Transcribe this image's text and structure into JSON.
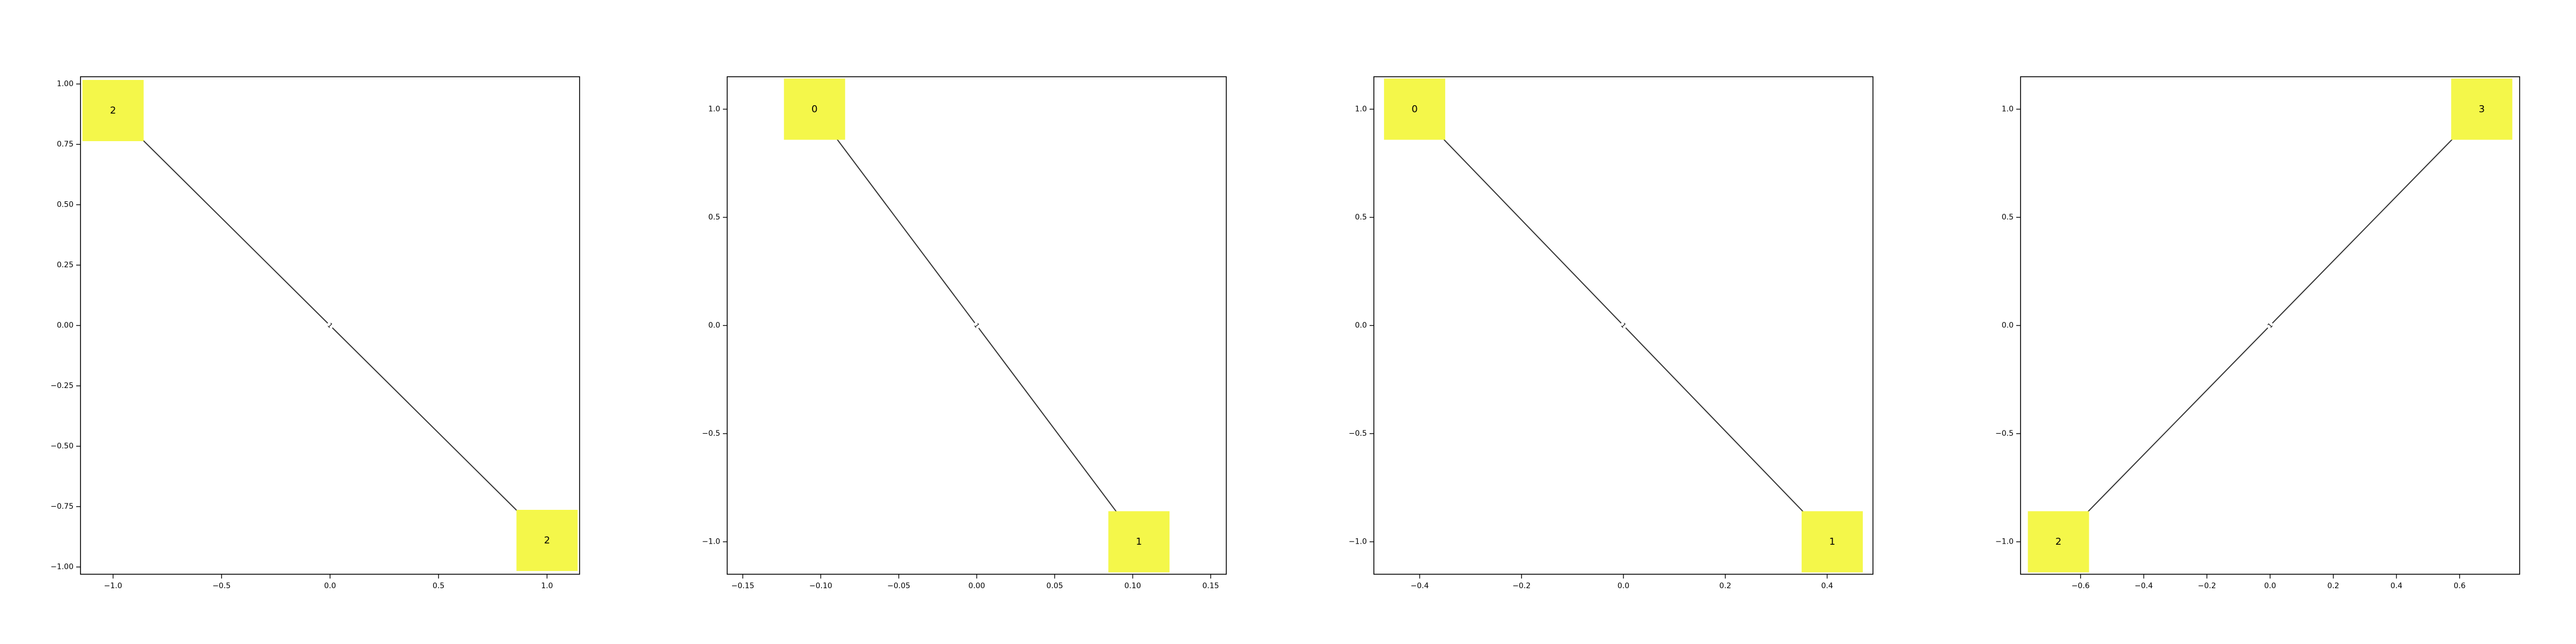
{
  "chart_data": [
    {
      "type": "network",
      "xlim": [
        -1.15,
        1.15
      ],
      "ylim": [
        -1.03,
        1.03
      ],
      "x_ticks": [
        -1.0,
        -0.5,
        0.0,
        0.5,
        1.0
      ],
      "x_tick_labels": [
        "−1.0",
        "−0.5",
        "0.0",
        "0.5",
        "1.0"
      ],
      "y_ticks": [
        -1.0,
        -0.75,
        -0.5,
        -0.25,
        0.0,
        0.25,
        0.5,
        0.75,
        1.0
      ],
      "y_tick_labels": [
        "−1.00",
        "−0.75",
        "−0.50",
        "−0.25",
        "0.00",
        "0.25",
        "0.50",
        "0.75",
        "1.00"
      ],
      "nodes": [
        {
          "label": "2",
          "x": -1.0,
          "y": 0.89
        },
        {
          "label": "2",
          "x": 1.0,
          "y": -0.89
        }
      ],
      "edges": [
        {
          "from": 0,
          "to": 1,
          "label": "1"
        }
      ]
    },
    {
      "type": "network",
      "xlim": [
        -0.16,
        0.16
      ],
      "ylim": [
        -1.15,
        1.15
      ],
      "x_ticks": [
        -0.15,
        -0.1,
        -0.05,
        0.0,
        0.05,
        0.1,
        0.15
      ],
      "x_tick_labels": [
        "−0.15",
        "−0.10",
        "−0.05",
        "0.00",
        "0.05",
        "0.10",
        "0.15"
      ],
      "y_ticks": [
        -1.0,
        -0.5,
        0.0,
        0.5,
        1.0
      ],
      "y_tick_labels": [
        "−1.0",
        "−0.5",
        "0.0",
        "0.5",
        "1.0"
      ],
      "nodes": [
        {
          "label": "0",
          "x": -0.104,
          "y": 1.0
        },
        {
          "label": "1",
          "x": 0.104,
          "y": -1.0
        }
      ],
      "edges": [
        {
          "from": 0,
          "to": 1,
          "label": "1"
        }
      ]
    },
    {
      "type": "network",
      "xlim": [
        -0.49,
        0.49
      ],
      "ylim": [
        -1.15,
        1.15
      ],
      "x_ticks": [
        -0.4,
        -0.2,
        0.0,
        0.2,
        0.4
      ],
      "x_tick_labels": [
        "−0.4",
        "−0.2",
        "0.0",
        "0.2",
        "0.4"
      ],
      "y_ticks": [
        -1.0,
        -0.5,
        0.0,
        0.5,
        1.0
      ],
      "y_tick_labels": [
        "−1.0",
        "−0.5",
        "0.0",
        "0.5",
        "1.0"
      ],
      "nodes": [
        {
          "label": "0",
          "x": -0.41,
          "y": 1.0
        },
        {
          "label": "1",
          "x": 0.41,
          "y": -1.0
        }
      ],
      "edges": [
        {
          "from": 0,
          "to": 1,
          "label": "1"
        }
      ]
    },
    {
      "type": "network",
      "xlim": [
        -0.79,
        0.79
      ],
      "ylim": [
        -1.15,
        1.15
      ],
      "x_ticks": [
        -0.6,
        -0.4,
        -0.2,
        0.0,
        0.2,
        0.4,
        0.6
      ],
      "x_tick_labels": [
        "−0.6",
        "−0.4",
        "−0.2",
        "0.0",
        "0.2",
        "0.4",
        "0.6"
      ],
      "y_ticks": [
        -1.0,
        -0.5,
        0.0,
        0.5,
        1.0
      ],
      "y_tick_labels": [
        "−1.0",
        "−0.5",
        "0.0",
        "0.5",
        "1.0"
      ],
      "nodes": [
        {
          "label": "3",
          "x": 0.67,
          "y": 1.0
        },
        {
          "label": "2",
          "x": -0.67,
          "y": -1.0
        }
      ],
      "edges": [
        {
          "from": 0,
          "to": 1,
          "label": "1"
        }
      ]
    }
  ],
  "style": {
    "node_fill": "#f4f74a",
    "edge_color": "#333333",
    "axis_color": "#000000",
    "background": "#ffffff"
  }
}
